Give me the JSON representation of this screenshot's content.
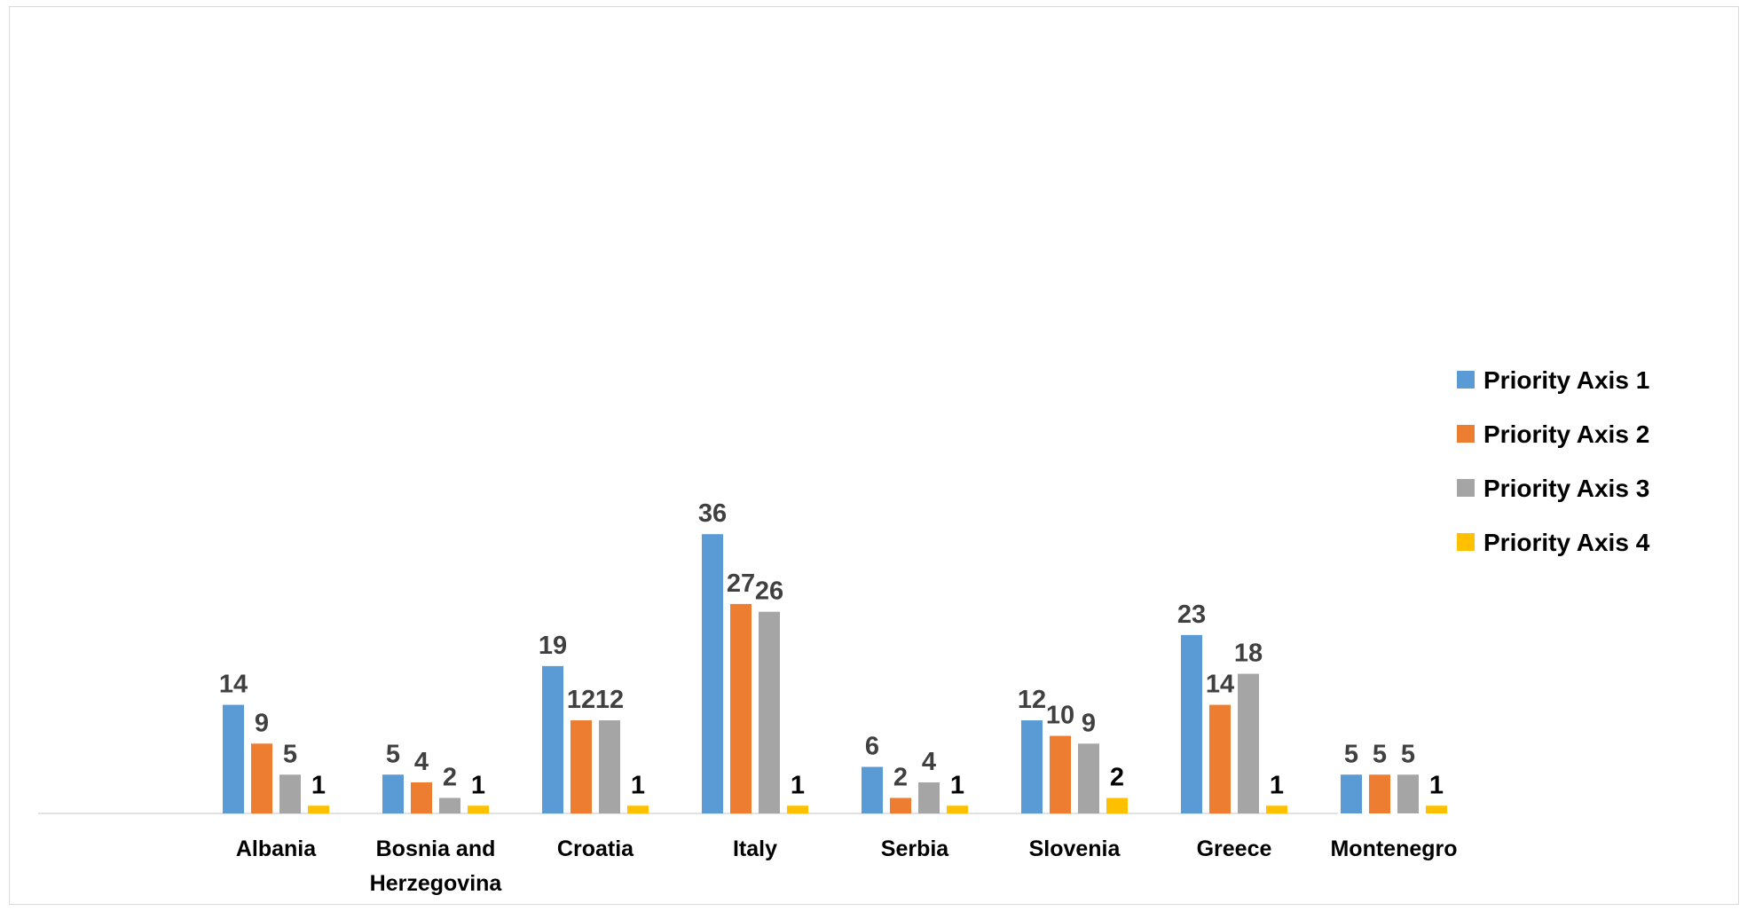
{
  "chart_data": {
    "type": "bar",
    "title": "",
    "xlabel": "",
    "ylabel": "",
    "ylim": [
      0,
      40
    ],
    "grid": false,
    "legend_position": "right",
    "categories": [
      "Albania",
      "Bosnia and Herzegovina",
      "Croatia",
      "Italy",
      "Serbia",
      "Slovenia",
      "Greece",
      "Montenegro"
    ],
    "category_label_lines": [
      [
        "Albania"
      ],
      [
        "Bosnia and",
        "Herzegovina"
      ],
      [
        "Croatia"
      ],
      [
        "Italy"
      ],
      [
        "Serbia"
      ],
      [
        "Slovenia"
      ],
      [
        "Greece"
      ],
      [
        "Montenegro"
      ]
    ],
    "series": [
      {
        "name": "Priority Axis 1",
        "color": "#5B9BD5",
        "label_color": "#404040",
        "values": [
          14,
          5,
          19,
          36,
          6,
          12,
          23,
          5
        ]
      },
      {
        "name": "Priority Axis 2",
        "color": "#ED7D31",
        "label_color": "#404040",
        "values": [
          9,
          4,
          12,
          27,
          2,
          10,
          14,
          5
        ]
      },
      {
        "name": "Priority Axis 3",
        "color": "#A5A5A5",
        "label_color": "#404040",
        "values": [
          5,
          2,
          12,
          26,
          4,
          9,
          18,
          5
        ]
      },
      {
        "name": "Priority Axis 4",
        "color": "#FFC000",
        "label_color": "#000000",
        "values": [
          1,
          1,
          1,
          1,
          1,
          2,
          1,
          1
        ]
      }
    ]
  }
}
